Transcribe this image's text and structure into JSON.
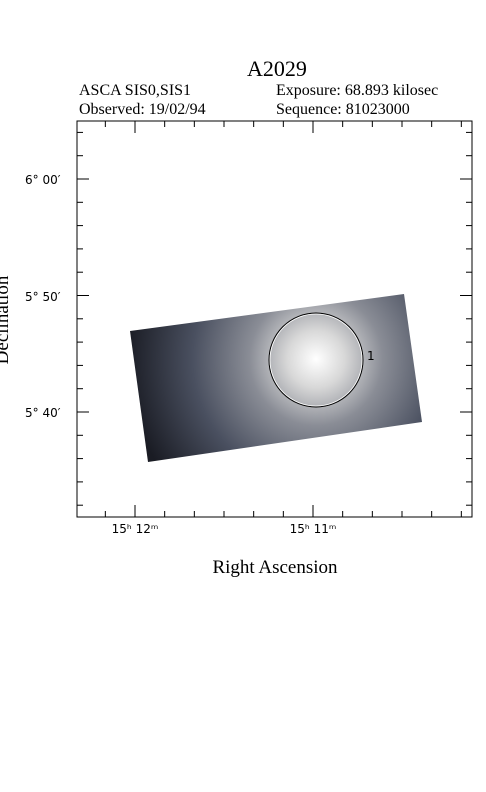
{
  "title": "A2029",
  "info": {
    "instrument": "ASCA SIS0,SIS1",
    "observed": "Observed: 19/02/94",
    "exposure": "Exposure: 68.893 kilosec",
    "sequence": "Sequence: 81023000"
  },
  "yticks": [
    "6° 00′",
    "5° 50′",
    "5° 40′"
  ],
  "xticks": [
    "15ʰ 12ᵐ",
    "15ʰ 11ᵐ"
  ],
  "xlabel": "Right Ascension",
  "ylabel": "Declination",
  "region_label": "1"
}
